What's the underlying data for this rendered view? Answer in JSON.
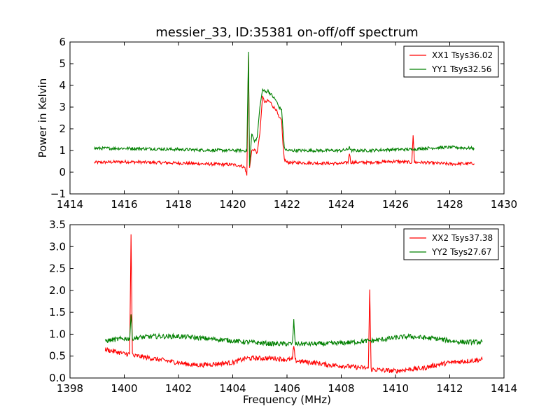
{
  "figure_title": "messier_33, ID:35381 on-off/off spectrum",
  "colors": {
    "xx": "#ff0000",
    "yy": "#008000"
  },
  "chart_data": [
    {
      "type": "line",
      "title": "messier_33, ID:35381 on-off/off spectrum",
      "xlabel": "",
      "ylabel": "Power in Kelvin",
      "xlim": [
        1414,
        1430
      ],
      "ylim": [
        -1,
        6
      ],
      "xticks": [
        "1414",
        "1416",
        "1418",
        "1420",
        "1422",
        "1424",
        "1426",
        "1428",
        "1430"
      ],
      "yticks": [
        "−1",
        "0",
        "1",
        "2",
        "3",
        "4",
        "5",
        "6"
      ],
      "grid": false,
      "legend_position": "top-right",
      "series": [
        {
          "name": "XX1 Tsys36.02",
          "color": "#ff0000",
          "x": [
            1414.9,
            1416,
            1417,
            1418,
            1419,
            1420,
            1420.3,
            1420.45,
            1420.52,
            1420.58,
            1420.62,
            1420.7,
            1420.8,
            1420.9,
            1421.0,
            1421.1,
            1421.2,
            1421.3,
            1421.4,
            1421.5,
            1421.6,
            1421.7,
            1421.8,
            1421.85,
            1421.9,
            1422.0,
            1423,
            1424,
            1424.25,
            1424.3,
            1424.35,
            1425,
            1426,
            1426.6,
            1426.65,
            1426.7,
            1427,
            1428,
            1428.9
          ],
          "y": [
            0.45,
            0.48,
            0.45,
            0.42,
            0.38,
            0.35,
            0.3,
            0.2,
            -0.15,
            5.4,
            0.2,
            1.0,
            1.05,
            0.9,
            1.8,
            3.45,
            3.2,
            3.3,
            3.2,
            3.0,
            2.9,
            2.5,
            2.4,
            1.3,
            0.6,
            0.45,
            0.42,
            0.4,
            0.45,
            0.9,
            0.45,
            0.45,
            0.5,
            0.45,
            1.7,
            0.45,
            0.45,
            0.38,
            0.4
          ]
        },
        {
          "name": "YY1 Tsys32.56",
          "color": "#008000",
          "x": [
            1414.9,
            1416,
            1417,
            1418,
            1419,
            1420,
            1420.3,
            1420.45,
            1420.52,
            1420.58,
            1420.62,
            1420.7,
            1420.8,
            1420.9,
            1421.0,
            1421.1,
            1421.2,
            1421.3,
            1421.4,
            1421.5,
            1421.6,
            1421.7,
            1421.8,
            1421.85,
            1421.9,
            1422.0,
            1423,
            1424,
            1424.25,
            1424.3,
            1424.35,
            1425,
            1426,
            1426.6,
            1426.65,
            1426.7,
            1427,
            1428,
            1428.9
          ],
          "y": [
            1.1,
            1.1,
            1.08,
            1.05,
            1.02,
            1.0,
            1.0,
            1.0,
            0.95,
            5.55,
            0.3,
            1.8,
            1.4,
            1.6,
            3.0,
            3.8,
            3.7,
            3.75,
            3.6,
            3.45,
            3.3,
            3.0,
            2.9,
            2.0,
            1.1,
            1.0,
            1.0,
            1.0,
            1.05,
            1.2,
            1.0,
            1.0,
            1.05,
            1.05,
            1.1,
            1.05,
            1.1,
            1.15,
            1.1
          ]
        }
      ]
    },
    {
      "type": "line",
      "title": "",
      "xlabel": "Frequency (MHz)",
      "ylabel": "",
      "xlim": [
        1398,
        1414
      ],
      "ylim": [
        0,
        3.5
      ],
      "xticks": [
        "1398",
        "1400",
        "1402",
        "1404",
        "1406",
        "1408",
        "1410",
        "1412",
        "1414"
      ],
      "yticks": [
        "0.0",
        "0.5",
        "1.0",
        "1.5",
        "2.0",
        "2.5",
        "3.0",
        "3.5"
      ],
      "grid": false,
      "legend_position": "top-right",
      "series": [
        {
          "name": "XX2 Tsys37.38",
          "color": "#ff0000",
          "x": [
            1399.3,
            1399.7,
            1400.0,
            1400.2,
            1400.25,
            1400.3,
            1400.35,
            1400.5,
            1401,
            1401.5,
            1402,
            1402.5,
            1403,
            1403.5,
            1404,
            1404.5,
            1405,
            1405.5,
            1406,
            1406.2,
            1406.25,
            1406.3,
            1406.5,
            1407,
            1407.5,
            1408,
            1408.5,
            1409.0,
            1409.05,
            1409.1,
            1409.5,
            1410,
            1410.5,
            1411,
            1411.5,
            1412,
            1412.5,
            1413.2
          ],
          "y": [
            0.65,
            0.6,
            0.55,
            0.55,
            3.28,
            0.55,
            0.5,
            0.5,
            0.45,
            0.4,
            0.35,
            0.3,
            0.3,
            0.33,
            0.35,
            0.45,
            0.45,
            0.45,
            0.42,
            0.42,
            0.75,
            0.4,
            0.38,
            0.35,
            0.3,
            0.28,
            0.25,
            0.22,
            2.02,
            0.2,
            0.18,
            0.16,
            0.2,
            0.22,
            0.3,
            0.35,
            0.38,
            0.42
          ]
        },
        {
          "name": "YY2 Tsys27.67",
          "color": "#008000",
          "x": [
            1399.3,
            1399.7,
            1400.0,
            1400.2,
            1400.25,
            1400.3,
            1400.35,
            1400.5,
            1401,
            1401.5,
            1402,
            1402.5,
            1403,
            1403.5,
            1404,
            1404.5,
            1405,
            1405.5,
            1406,
            1406.2,
            1406.25,
            1406.3,
            1406.5,
            1407,
            1407.5,
            1408,
            1408.5,
            1409.0,
            1409.05,
            1409.1,
            1409.5,
            1410,
            1410.5,
            1411,
            1411.5,
            1412,
            1412.5,
            1413.2
          ],
          "y": [
            0.85,
            0.88,
            0.9,
            0.9,
            1.45,
            0.9,
            0.92,
            0.92,
            0.95,
            0.95,
            0.95,
            0.93,
            0.9,
            0.88,
            0.85,
            0.82,
            0.8,
            0.78,
            0.78,
            0.78,
            1.32,
            0.78,
            0.78,
            0.78,
            0.78,
            0.8,
            0.82,
            0.85,
            0.85,
            0.85,
            0.88,
            0.92,
            0.95,
            0.92,
            0.9,
            0.85,
            0.82,
            0.82
          ]
        }
      ]
    }
  ]
}
